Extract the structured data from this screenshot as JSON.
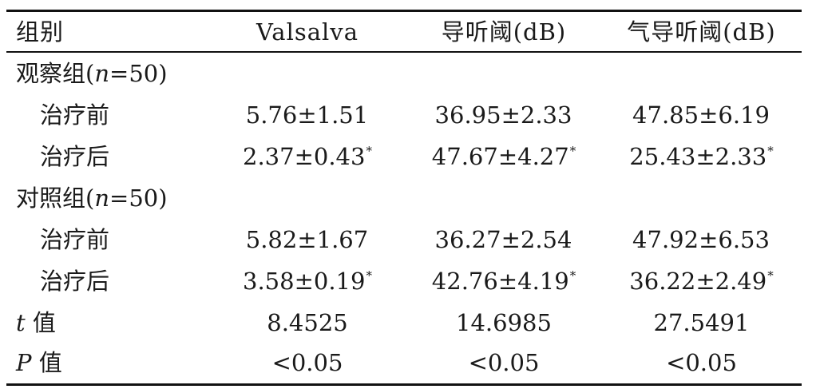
{
  "headers": [
    "组别",
    "Valsalva",
    "导听阈(dB)",
    "气导听阈(dB)"
  ],
  "groups": [
    {
      "label_prefix": "观察组(",
      "n_symbol": "n",
      "label_suffix": "=50)",
      "rows": [
        {
          "label": "治疗前",
          "values": [
            "5.76±1.51",
            "36.95±2.33",
            "47.85±6.19"
          ],
          "marks": [
            "",
            "",
            ""
          ]
        },
        {
          "label": "治疗后",
          "values": [
            "2.37±0.43",
            "47.67±4.27",
            "25.43±2.33"
          ],
          "marks": [
            "*",
            "*",
            "*"
          ]
        }
      ]
    },
    {
      "label_prefix": "对照组(",
      "n_symbol": "n",
      "label_suffix": "=50)",
      "rows": [
        {
          "label": "治疗前",
          "values": [
            "5.82±1.67",
            "36.27±2.54",
            "47.92±6.53"
          ],
          "marks": [
            "",
            "",
            ""
          ]
        },
        {
          "label": "治疗后",
          "values": [
            "3.58±0.19",
            "42.76±4.19",
            "36.22±2.49"
          ],
          "marks": [
            "*",
            "*",
            "*"
          ]
        }
      ]
    }
  ],
  "stats": [
    {
      "symbol": "t",
      "label": " 值",
      "values": [
        "8.4525",
        "14.6985",
        "27.5491"
      ]
    },
    {
      "symbol": "P",
      "label": " 值",
      "values": [
        "<0.05",
        "<0.05",
        "<0.05"
      ]
    }
  ]
}
